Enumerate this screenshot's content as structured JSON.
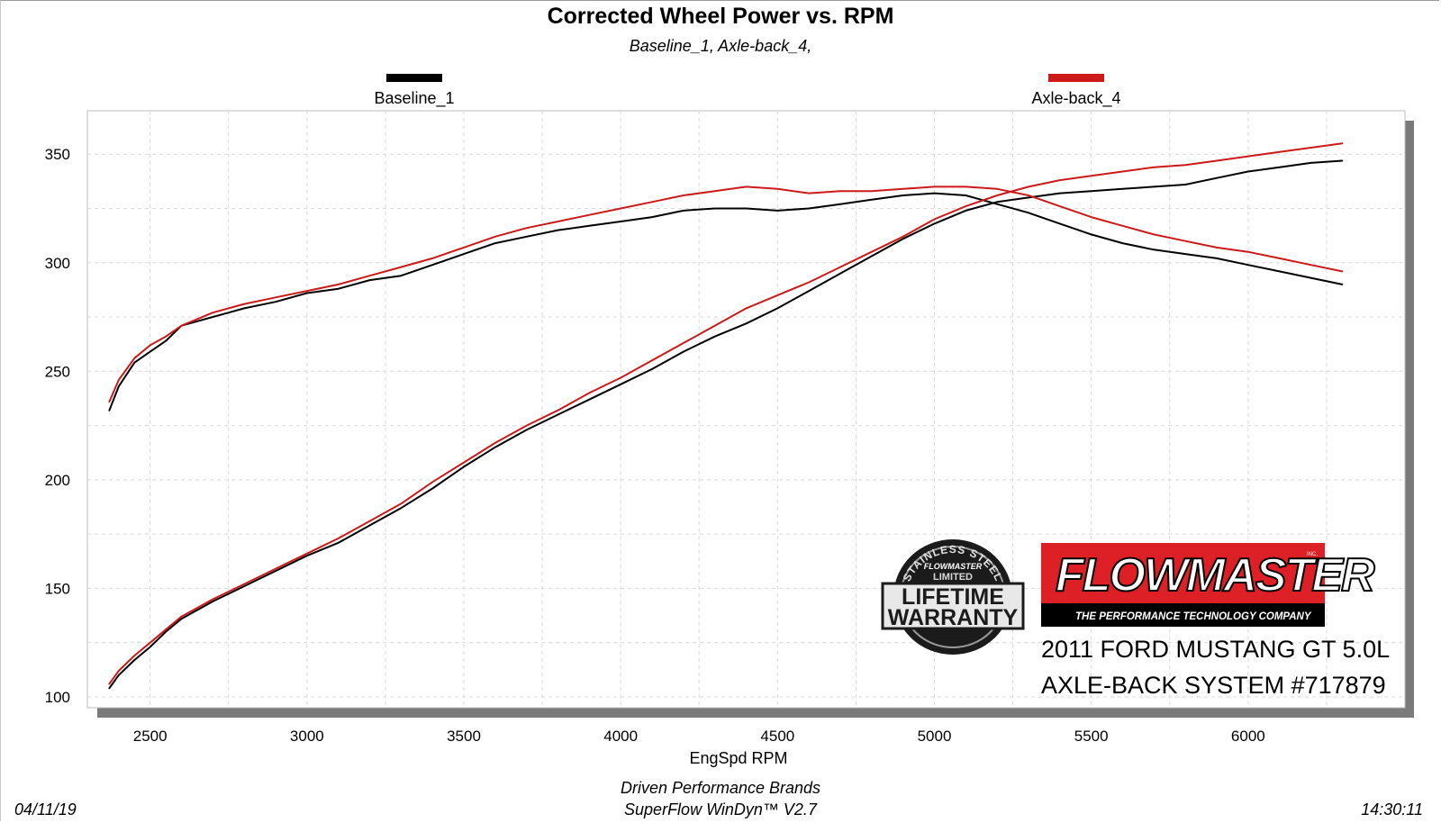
{
  "chart_data": {
    "type": "line",
    "title": "Corrected Wheel Power vs. RPM",
    "subtitle": "Baseline_1, Axle-back_4,",
    "xlabel": "EngSpd  RPM",
    "ylabel": "",
    "xlim": [
      2300,
      6500
    ],
    "ylim": [
      95,
      370
    ],
    "x_ticks": [
      "2500",
      "3000",
      "3500",
      "4000",
      "4500",
      "5000",
      "5500",
      "6000"
    ],
    "y_ticks": [
      "100",
      "150",
      "200",
      "250",
      "300",
      "350"
    ],
    "grid": true,
    "legend_position": "top",
    "series": [
      {
        "name": "Baseline_1",
        "color": "#000000",
        "curves": [
          {
            "x": [
              2370,
              2400,
              2450,
              2500,
              2550,
              2600,
              2700,
              2800,
              2900,
              3000,
              3100,
              3200,
              3300,
              3400,
              3500,
              3600,
              3700,
              3800,
              3900,
              4000,
              4100,
              4200,
              4300,
              4400,
              4500,
              4600,
              4700,
              4800,
              4900,
              5000,
              5100,
              5200,
              5300,
              5400,
              5500,
              5600,
              5700,
              5800,
              5900,
              6000,
              6100,
              6200,
              6300
            ],
            "y": [
              232,
              243,
              254,
              259,
              264,
              271,
              275,
              279,
              282,
              286,
              288,
              292,
              294,
              299,
              304,
              309,
              312,
              315,
              317,
              319,
              321,
              324,
              325,
              325,
              324,
              325,
              327,
              329,
              331,
              332,
              331,
              327,
              323,
              318,
              313,
              309,
              306,
              304,
              302,
              299,
              296,
              293,
              290
            ]
          },
          {
            "x": [
              2370,
              2400,
              2450,
              2500,
              2550,
              2600,
              2700,
              2800,
              2900,
              3000,
              3100,
              3200,
              3300,
              3400,
              3500,
              3600,
              3700,
              3800,
              3900,
              4000,
              4100,
              4200,
              4300,
              4400,
              4500,
              4600,
              4700,
              4800,
              4900,
              5000,
              5100,
              5200,
              5300,
              5400,
              5500,
              5600,
              5700,
              5800,
              5900,
              6000,
              6100,
              6200,
              6300
            ],
            "y": [
              104,
              110,
              117,
              123,
              130,
              136,
              144,
              151,
              158,
              165,
              171,
              179,
              187,
              196,
              206,
              215,
              223,
              230,
              237,
              244,
              251,
              259,
              266,
              272,
              279,
              287,
              295,
              303,
              311,
              318,
              324,
              328,
              330,
              332,
              333,
              334,
              335,
              336,
              339,
              342,
              344,
              346,
              347
            ]
          }
        ]
      },
      {
        "name": "Axle-back_4",
        "color": "#cc1a1a",
        "curves": [
          {
            "x": [
              2370,
              2400,
              2450,
              2500,
              2550,
              2600,
              2700,
              2800,
              2900,
              3000,
              3100,
              3200,
              3300,
              3400,
              3500,
              3600,
              3700,
              3800,
              3900,
              4000,
              4100,
              4200,
              4300,
              4400,
              4500,
              4600,
              4700,
              4800,
              4900,
              5000,
              5100,
              5200,
              5300,
              5400,
              5500,
              5600,
              5700,
              5800,
              5900,
              6000,
              6100,
              6200,
              6300
            ],
            "y": [
              236,
              246,
              256,
              262,
              266,
              271,
              277,
              281,
              284,
              287,
              290,
              294,
              298,
              302,
              307,
              312,
              316,
              319,
              322,
              325,
              328,
              331,
              333,
              335,
              334,
              332,
              333,
              333,
              334,
              335,
              335,
              334,
              331,
              326,
              321,
              317,
              313,
              310,
              307,
              305,
              302,
              299,
              296
            ]
          },
          {
            "x": [
              2370,
              2400,
              2450,
              2500,
              2550,
              2600,
              2700,
              2800,
              2900,
              3000,
              3100,
              3200,
              3300,
              3400,
              3500,
              3600,
              3700,
              3800,
              3900,
              4000,
              4100,
              4200,
              4300,
              4400,
              4500,
              4600,
              4700,
              4800,
              4900,
              5000,
              5100,
              5200,
              5300,
              5400,
              5500,
              5600,
              5700,
              5800,
              5900,
              6000,
              6100,
              6200,
              6300
            ],
            "y": [
              106,
              112,
              119,
              125,
              131,
              137,
              145,
              152,
              159,
              166,
              173,
              181,
              189,
              199,
              208,
              217,
              225,
              232,
              240,
              247,
              255,
              263,
              271,
              279,
              285,
              291,
              298,
              305,
              312,
              320,
              326,
              331,
              335,
              338,
              340,
              342,
              344,
              345,
              347,
              349,
              351,
              353,
              355
            ]
          }
        ]
      }
    ]
  },
  "legend": {
    "items": [
      {
        "label": "Baseline_1",
        "color": "#000000"
      },
      {
        "label": "Axle-back_4",
        "color": "#cc1a1a"
      }
    ]
  },
  "badges": {
    "warranty_line1": "STAINLESS STEEL",
    "warranty_line2": "FLOWMASTER",
    "warranty_line3": "LIMITED",
    "warranty_line4": "LIFETIME",
    "warranty_line5": "WARRANTY",
    "brand_name": "FLOWMASTER",
    "brand_tagline": "THE PERFORMANCE TECHNOLOGY COMPANY",
    "brand_inc": "INC."
  },
  "annotation": {
    "line1": "2011 FORD MUSTANG GT 5.0L",
    "line2": "AXLE-BACK SYSTEM #717879"
  },
  "footer": {
    "date": "04/11/19",
    "company": "Driven Performance Brands",
    "software": "SuperFlow WinDyn™  V2.7",
    "time": "14:30:11"
  }
}
